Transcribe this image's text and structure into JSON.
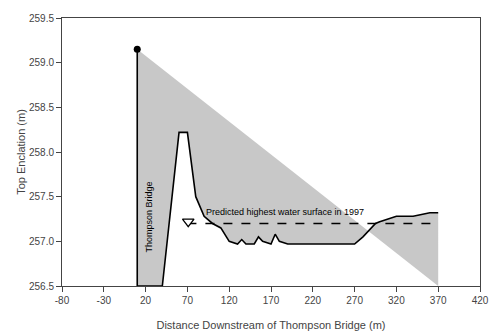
{
  "chart_data": {
    "type": "area",
    "xlabel": "Distance Downstream of Thompson Bridge (m)",
    "ylabel": "Top Enclation (m)",
    "xlim": [
      -80,
      420
    ],
    "ylim": [
      256.5,
      259.5
    ],
    "xticks": [
      -80,
      -30,
      20,
      70,
      120,
      170,
      220,
      270,
      320,
      370,
      420
    ],
    "yticks": [
      256.5,
      {
        "value": 257.0,
        "label": "257.0"
      },
      257.5,
      {
        "value": 258.0,
        "label": "258.0"
      },
      258.5,
      {
        "value": 259.0,
        "label": "259.0"
      },
      259.5
    ],
    "grid": false,
    "series": [
      {
        "type": "area",
        "color": "#c8c8c8",
        "x": [
          10,
          10,
          40,
          60,
          70,
          80,
          90,
          100,
          110,
          120,
          130,
          135,
          140,
          150,
          155,
          160,
          170,
          175,
          180,
          190,
          200,
          210,
          220,
          230,
          240,
          250,
          260,
          270,
          280,
          290,
          295,
          300,
          310,
          320,
          330,
          340,
          350,
          360,
          370,
          370
        ],
        "values": [
          259.15,
          256.5,
          256.5,
          258.22,
          258.22,
          257.5,
          257.28,
          257.2,
          257.15,
          257.0,
          256.97,
          257.02,
          256.97,
          256.97,
          257.05,
          257.0,
          256.97,
          257.08,
          257.0,
          256.97,
          256.97,
          256.97,
          256.97,
          256.97,
          256.97,
          256.97,
          256.97,
          256.97,
          257.05,
          257.15,
          257.2,
          257.22,
          257.25,
          257.28,
          257.28,
          257.28,
          257.3,
          257.32,
          257.32,
          256.5
        ]
      },
      {
        "type": "line",
        "color": "#000000",
        "line_style": "solid",
        "x": [
          10,
          10,
          40,
          60,
          70,
          80,
          90,
          100,
          110,
          120,
          130,
          135,
          140,
          150,
          155,
          160,
          170,
          175,
          180,
          190,
          200,
          210,
          220,
          230,
          240,
          250,
          260,
          270,
          280,
          290,
          295,
          300,
          310,
          320,
          330,
          340,
          350,
          360,
          370
        ],
        "values": [
          259.15,
          256.5,
          256.5,
          258.22,
          258.22,
          257.5,
          257.28,
          257.2,
          257.15,
          257.0,
          256.97,
          257.02,
          256.97,
          256.97,
          257.05,
          257.0,
          256.97,
          257.08,
          257.0,
          256.97,
          256.97,
          256.97,
          256.97,
          256.97,
          256.97,
          256.97,
          256.97,
          256.97,
          257.05,
          257.15,
          257.2,
          257.22,
          257.25,
          257.28,
          257.28,
          257.28,
          257.3,
          257.32,
          257.32
        ]
      },
      {
        "type": "scatter",
        "color": "#000000",
        "marker": "circle",
        "x": [
          10
        ],
        "values": [
          259.15
        ]
      },
      {
        "type": "line",
        "color": "#000000",
        "line_style": "dash",
        "x": [
          70,
          370
        ],
        "values": [
          257.2,
          257.2
        ]
      },
      {
        "type": "scatter",
        "color": "#000000",
        "marker": "triangle-down",
        "x": [
          71
        ],
        "values": [
          257.22
        ]
      }
    ],
    "annotations": [
      {
        "text": "Predicted highest water surface in 1997",
        "x": 90,
        "y": 257.25,
        "color": "#000000"
      },
      {
        "text": "Thompson Bridge",
        "x": 16,
        "y": 256.85,
        "color": "#000000"
      }
    ]
  }
}
